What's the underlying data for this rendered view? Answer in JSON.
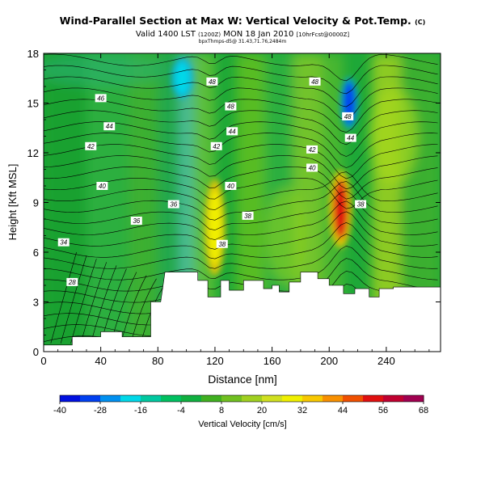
{
  "header": {
    "title_main": "Wind-Parallel Section at Max W: Vertical Velocity & Pot.Temp.",
    "title_mark": "(C)",
    "line2_main": "Valid 1400 LST",
    "line2_utc": "(1200Z)",
    "line2_date": "MON 18 Jan 2010",
    "line2_run": "[10hrFcst@0000Z]",
    "line3": "bpxThmps-d5@ 31.43,71.76,2484m"
  },
  "chart_data": {
    "type": "heatmap",
    "xlabel": "Distance [nm]",
    "ylabel": "Height [Kft MSL]",
    "xlim": [
      0,
      278
    ],
    "ylim": [
      0,
      18
    ],
    "xticks": [
      0,
      40,
      80,
      120,
      160,
      200,
      240
    ],
    "yticks": [
      0,
      3,
      6,
      9,
      12,
      15,
      18
    ],
    "colorbar": {
      "label": "Vertical Velocity [cm/s]",
      "ticks": [
        -40,
        -28,
        -16,
        -4,
        8,
        20,
        32,
        44,
        56,
        68
      ],
      "range": [
        -40,
        68
      ],
      "colors": [
        "#0010e0",
        "#0040f0",
        "#0090f0",
        "#00d8e8",
        "#00c8a0",
        "#00c060",
        "#10b040",
        "#40b020",
        "#70c020",
        "#a0d020",
        "#d0e020",
        "#f0f000",
        "#f8c800",
        "#f89000",
        "#f05000",
        "#e01010",
        "#c00030",
        "#a00050"
      ]
    },
    "isentrope_labels": [
      {
        "value": "46",
        "x": 40,
        "y": 15.3
      },
      {
        "value": "44",
        "x": 46,
        "y": 13.6
      },
      {
        "value": "42",
        "x": 33,
        "y": 12.4
      },
      {
        "value": "40",
        "x": 41,
        "y": 10.0
      },
      {
        "value": "36",
        "x": 65,
        "y": 7.9
      },
      {
        "value": "34",
        "x": 14,
        "y": 6.6
      },
      {
        "value": "28",
        "x": 20,
        "y": 4.2
      },
      {
        "value": "48",
        "x": 118,
        "y": 16.3
      },
      {
        "value": "48",
        "x": 131,
        "y": 14.8
      },
      {
        "value": "44",
        "x": 132,
        "y": 13.3
      },
      {
        "value": "42",
        "x": 121,
        "y": 12.4
      },
      {
        "value": "40",
        "x": 131,
        "y": 10.0
      },
      {
        "value": "38",
        "x": 143,
        "y": 8.2
      },
      {
        "value": "36",
        "x": 91,
        "y": 8.9
      },
      {
        "value": "38",
        "x": 125,
        "y": 6.5
      },
      {
        "value": "48",
        "x": 190,
        "y": 16.3
      },
      {
        "value": "48",
        "x": 213,
        "y": 14.2
      },
      {
        "value": "44",
        "x": 215,
        "y": 12.9
      },
      {
        "value": "42",
        "x": 188,
        "y": 12.2
      },
      {
        "value": "40",
        "x": 188,
        "y": 11.1
      },
      {
        "value": "38",
        "x": 222,
        "y": 8.9
      }
    ],
    "fields": {
      "base": "#1ea838",
      "features": [
        {
          "kind": "updraft",
          "x": 120,
          "y": 7.5,
          "w": 9,
          "h": 4.5,
          "color": "#f0f000"
        },
        {
          "kind": "updraft",
          "x": 208,
          "y": 8.6,
          "w": 10,
          "h": 3.6,
          "color": "#e01010"
        },
        {
          "kind": "downdraft",
          "x": 214,
          "y": 15.0,
          "w": 8,
          "h": 2.6,
          "color": "#0040f0"
        },
        {
          "kind": "downdraft",
          "x": 97,
          "y": 16.5,
          "w": 10,
          "h": 2,
          "color": "#00d8e8"
        }
      ]
    },
    "terrain": [
      [
        0,
        0
      ],
      [
        0,
        0.4
      ],
      [
        20,
        0.4
      ],
      [
        20,
        0.9
      ],
      [
        40,
        0.9
      ],
      [
        40,
        1.2
      ],
      [
        55,
        1.2
      ],
      [
        55,
        0.9
      ],
      [
        75,
        0.9
      ],
      [
        75,
        3.0
      ],
      [
        82,
        3.0
      ],
      [
        85,
        4.8
      ],
      [
        108,
        4.8
      ],
      [
        108,
        4.3
      ],
      [
        115,
        4.3
      ],
      [
        115,
        3.3
      ],
      [
        124,
        3.3
      ],
      [
        124,
        4.3
      ],
      [
        130,
        4.3
      ],
      [
        130,
        3.7
      ],
      [
        140,
        3.7
      ],
      [
        140,
        4.3
      ],
      [
        154,
        4.3
      ],
      [
        154,
        3.8
      ],
      [
        160,
        3.8
      ],
      [
        160,
        4.0
      ],
      [
        165,
        4.0
      ],
      [
        165,
        3.6
      ],
      [
        172,
        3.6
      ],
      [
        172,
        4.2
      ],
      [
        180,
        4.2
      ],
      [
        180,
        4.8
      ],
      [
        192,
        4.8
      ],
      [
        192,
        4.4
      ],
      [
        200,
        4.4
      ],
      [
        200,
        4.0
      ],
      [
        210,
        4.0
      ],
      [
        210,
        3.5
      ],
      [
        218,
        3.5
      ],
      [
        218,
        3.8
      ],
      [
        228,
        3.8
      ],
      [
        228,
        3.3
      ],
      [
        235,
        3.3
      ],
      [
        235,
        3.8
      ],
      [
        245,
        3.8
      ],
      [
        245,
        3.9
      ],
      [
        278,
        3.9
      ],
      [
        278,
        0
      ]
    ]
  }
}
